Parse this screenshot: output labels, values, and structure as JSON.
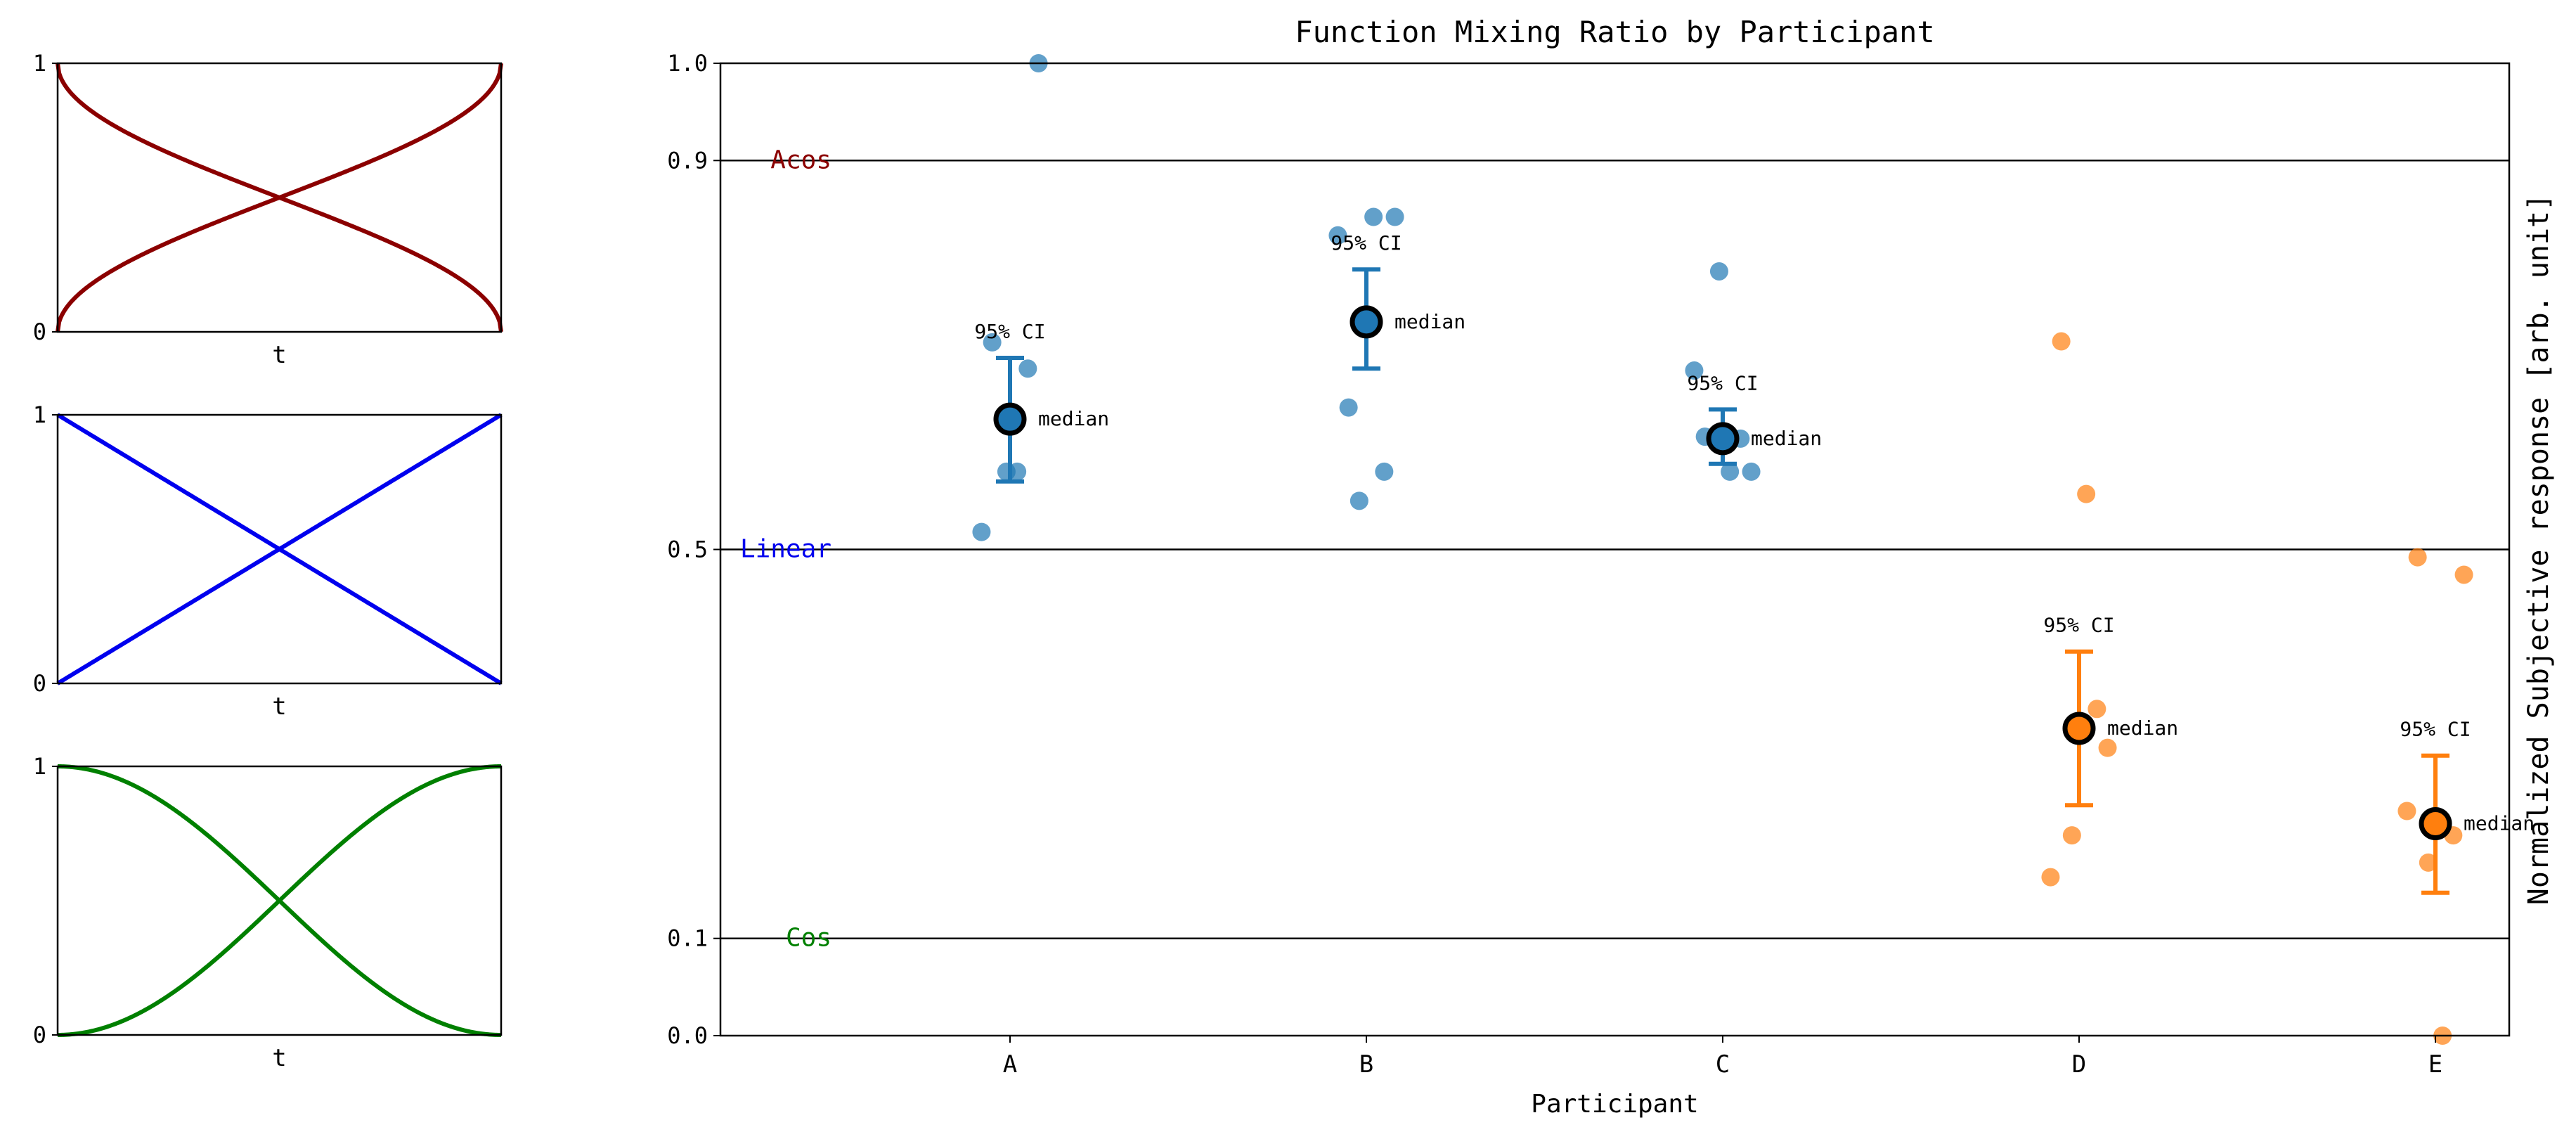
{
  "chart_data": [
    {
      "type": "line",
      "panel": "acos",
      "xlabel": "t",
      "yticks": [
        "0",
        "1"
      ],
      "color": "#8b0000",
      "curves": [
        "acos-increasing",
        "acos-decreasing"
      ]
    },
    {
      "type": "line",
      "panel": "linear",
      "xlabel": "t",
      "yticks": [
        "0",
        "1"
      ],
      "color": "#0000ee",
      "curves": [
        "linear-increasing",
        "linear-decreasing"
      ]
    },
    {
      "type": "line",
      "panel": "cos",
      "xlabel": "t",
      "yticks": [
        "0",
        "1"
      ],
      "color": "#008000",
      "curves": [
        "cos-increasing",
        "cos-decreasing"
      ]
    },
    {
      "type": "scatter",
      "title": "Function Mixing Ratio by Participant",
      "xlabel": "Participant",
      "ylabel": "Normalized Subjective response [arb. unit]",
      "ylim": [
        0.0,
        1.0
      ],
      "yticks": [
        0.0,
        0.1,
        0.5,
        0.9,
        1.0
      ],
      "categories": [
        "A",
        "B",
        "C",
        "D",
        "E"
      ],
      "reference_lines": [
        {
          "y": 0.9,
          "label": "Acos",
          "color": "#8b0000"
        },
        {
          "y": 0.5,
          "label": "Linear",
          "color": "#0000ee"
        },
        {
          "y": 0.1,
          "label": "Cos",
          "color": "#008000"
        }
      ],
      "ci_label": "95% CI",
      "median_label": "median",
      "colors": {
        "above": "#1f77b4",
        "below": "#ff7f0e"
      },
      "participants": [
        {
          "name": "A",
          "group": "above",
          "median": 0.634,
          "ci": [
            0.57,
            0.697
          ],
          "points": [
            [
              -0.08,
              0.518
            ],
            [
              -0.05,
              0.713
            ],
            [
              -0.01,
              0.58
            ],
            [
              0.02,
              0.58
            ],
            [
              0.05,
              0.686
            ],
            [
              0.08,
              1.0
            ]
          ]
        },
        {
          "name": "B",
          "group": "above",
          "median": 0.734,
          "ci": [
            0.686,
            0.788
          ],
          "points": [
            [
              -0.08,
              0.823
            ],
            [
              -0.05,
              0.646
            ],
            [
              -0.02,
              0.55
            ],
            [
              0.02,
              0.842
            ],
            [
              0.05,
              0.58
            ],
            [
              0.08,
              0.842
            ]
          ]
        },
        {
          "name": "C",
          "group": "above",
          "median": 0.614,
          "ci": [
            0.588,
            0.644
          ],
          "points": [
            [
              -0.08,
              0.684
            ],
            [
              -0.05,
              0.616
            ],
            [
              -0.01,
              0.786
            ],
            [
              0.02,
              0.58
            ],
            [
              0.05,
              0.614
            ],
            [
              0.08,
              0.58
            ]
          ]
        },
        {
          "name": "D",
          "group": "below",
          "median": 0.316,
          "ci": [
            0.237,
            0.395
          ],
          "points": [
            [
              -0.08,
              0.163
            ],
            [
              -0.05,
              0.714
            ],
            [
              -0.02,
              0.206
            ],
            [
              0.02,
              0.557
            ],
            [
              0.05,
              0.336
            ],
            [
              0.08,
              0.296
            ]
          ]
        },
        {
          "name": "E",
          "group": "below",
          "median": 0.218,
          "ci": [
            0.147,
            0.288
          ],
          "points": [
            [
              -0.08,
              0.231
            ],
            [
              -0.05,
              0.492
            ],
            [
              -0.02,
              0.178
            ],
            [
              0.02,
              0.0
            ],
            [
              0.05,
              0.206
            ],
            [
              0.08,
              0.474
            ]
          ]
        }
      ]
    }
  ]
}
